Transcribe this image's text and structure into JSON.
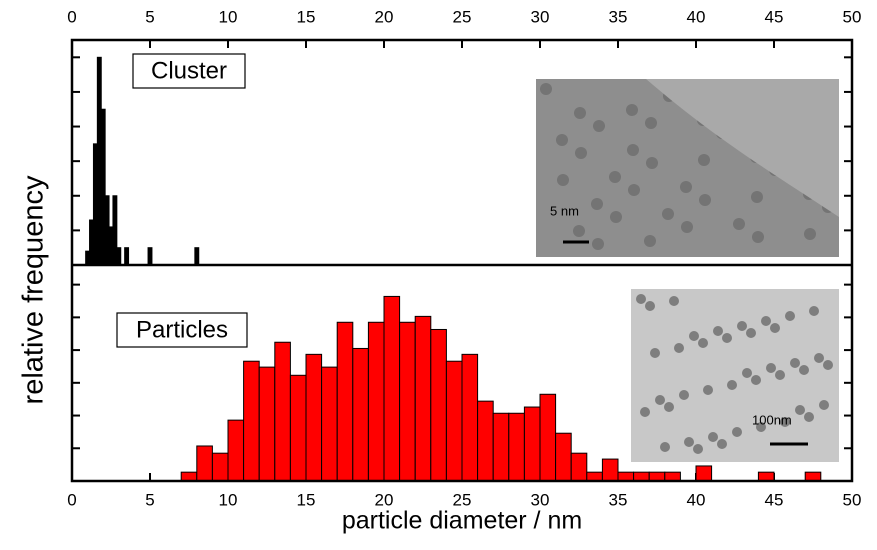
{
  "chart_data": {
    "type": "bar",
    "xlabel": "particle diameter / nm",
    "ylabel": "relative frequency",
    "xlim": [
      0,
      50
    ],
    "xticks": [
      0,
      5,
      10,
      15,
      20,
      25,
      30,
      35,
      40,
      45,
      50
    ],
    "panels": [
      {
        "label": "Cluster",
        "color": "#000000",
        "bar_width": 0.25,
        "ylim": [
          0,
          6.5
        ],
        "yticks": [
          0,
          1,
          2,
          3,
          4,
          5,
          6
        ],
        "x": [
          1.0,
          1.25,
          1.5,
          1.75,
          2.0,
          2.25,
          2.5,
          2.75,
          3.0,
          3.5,
          5.0,
          8.0
        ],
        "values": [
          0.4,
          1.3,
          3.5,
          6.0,
          4.5,
          2.0,
          1.1,
          2.0,
          0.5,
          0.5,
          0.5,
          0.5
        ],
        "inset_scale": "5 nm"
      },
      {
        "label": "Particles",
        "color": "#ff0000",
        "bar_width": 1,
        "ylim": [
          0,
          6.6
        ],
        "yticks": [
          0,
          1,
          2,
          3,
          4,
          5,
          6
        ],
        "x": [
          7.5,
          8.5,
          9.5,
          10.5,
          11.5,
          12.5,
          13.5,
          14.5,
          15.5,
          16.5,
          17.5,
          18.5,
          19.5,
          20.5,
          21.5,
          22.5,
          23.5,
          24.5,
          25.5,
          26.5,
          27.5,
          28.5,
          29.5,
          30.5,
          31.5,
          32.5,
          33.5,
          34.5,
          35.5,
          36.5,
          37.5,
          38.5,
          40.5,
          44.5,
          47.5
        ],
        "values": [
          0.27,
          1.07,
          0.85,
          1.86,
          3.66,
          3.48,
          4.24,
          3.23,
          3.87,
          3.48,
          4.85,
          4.05,
          4.85,
          5.64,
          4.85,
          5.03,
          4.63,
          3.66,
          3.87,
          2.44,
          2.07,
          2.07,
          2.26,
          2.65,
          1.46,
          0.85,
          0.27,
          0.67,
          0.27,
          0.27,
          0.27,
          0.27,
          0.46,
          0.27,
          0.27
        ],
        "inset_scale": "100nm"
      }
    ]
  }
}
